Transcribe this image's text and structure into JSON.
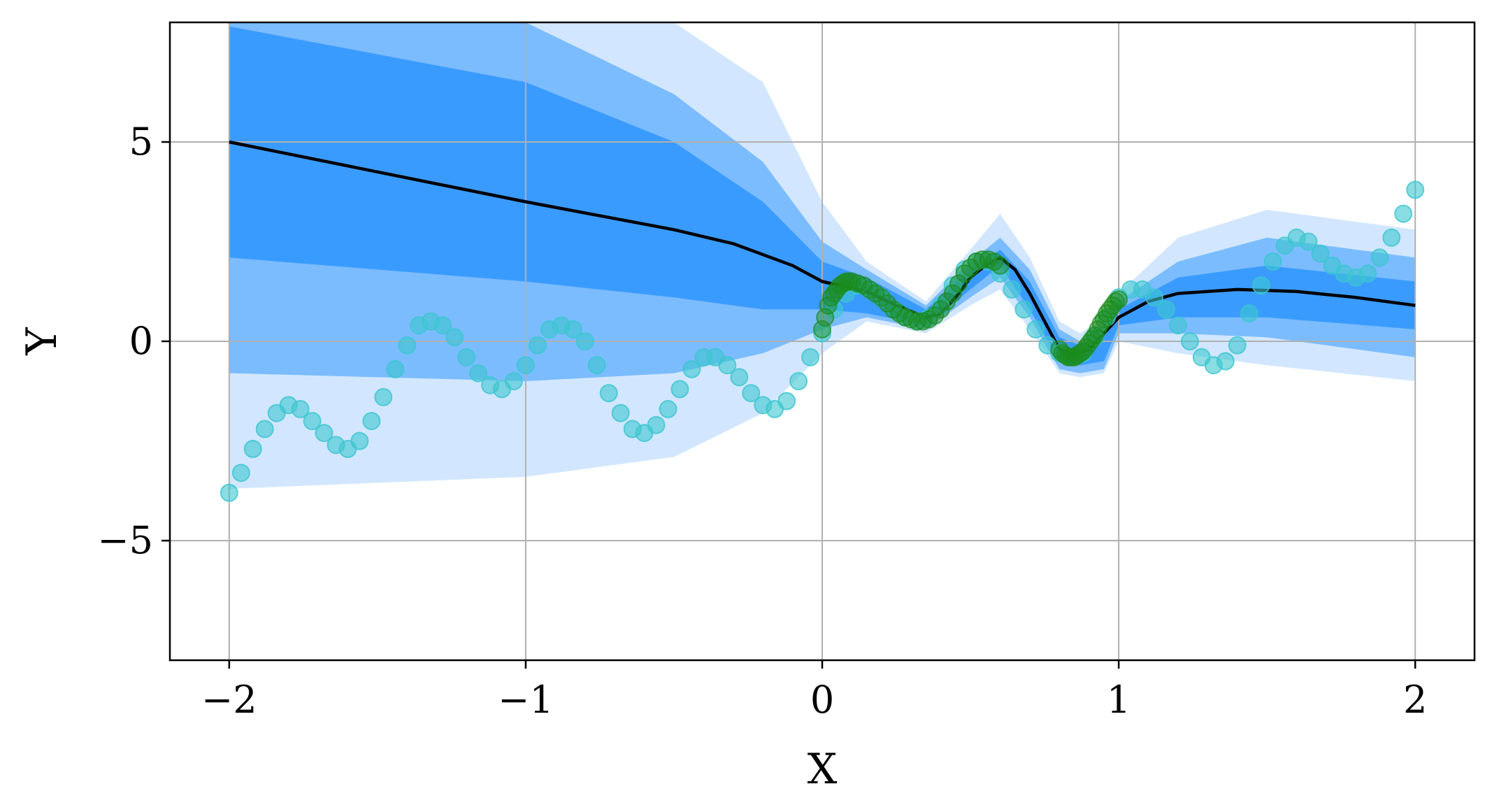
{
  "chart_data": {
    "type": "line",
    "title": "",
    "xlabel": "X",
    "ylabel": "Y",
    "xlim": [
      -2.2,
      2.2
    ],
    "ylim": [
      -8,
      8
    ],
    "xticks": [
      -2,
      -1,
      0,
      1,
      2
    ],
    "xtick_labels": [
      "−2",
      "−1",
      "0",
      "1",
      "2"
    ],
    "yticks": [
      -5,
      0,
      5
    ],
    "ytick_labels": [
      "−5",
      "0",
      "5"
    ],
    "grid": true,
    "colors": {
      "mean_line": "#000000",
      "band_inner": "#3a9bff",
      "band_middle": "#7bbcff",
      "band_outer": "#d2e7ff",
      "true_function_points": "#3cc6cf",
      "training_points": "#1a8c1a"
    },
    "mean": {
      "x": [
        -2.0,
        -1.5,
        -1.0,
        -0.5,
        -0.3,
        -0.1,
        0.0,
        0.15,
        0.25,
        0.35,
        0.4,
        0.45,
        0.5,
        0.55,
        0.6,
        0.65,
        0.7,
        0.75,
        0.8,
        0.85,
        0.9,
        1.0,
        1.1,
        1.2,
        1.4,
        1.6,
        1.8,
        2.0
      ],
      "y": [
        5.0,
        4.25,
        3.5,
        2.8,
        2.45,
        1.9,
        1.5,
        1.25,
        0.9,
        0.6,
        0.7,
        1.1,
        1.6,
        1.9,
        2.1,
        1.8,
        1.2,
        0.5,
        -0.2,
        -0.35,
        -0.2,
        0.6,
        1.0,
        1.2,
        1.3,
        1.25,
        1.1,
        0.9
      ]
    },
    "bands": [
      {
        "level": "inner",
        "x": [
          -2.0,
          -1.0,
          -0.5,
          -0.2,
          0.0,
          0.15,
          0.35,
          0.5,
          0.6,
          0.7,
          0.8,
          0.87,
          0.95,
          1.0,
          1.2,
          1.5,
          2.0
        ],
        "upper": [
          7.9,
          6.5,
          5.0,
          3.5,
          2.0,
          1.6,
          0.8,
          1.8,
          2.3,
          1.5,
          0.1,
          -0.1,
          0.2,
          0.8,
          1.6,
          1.9,
          1.5
        ],
        "lower": [
          2.1,
          1.5,
          1.1,
          0.8,
          0.8,
          0.7,
          0.4,
          1.3,
          1.9,
          0.8,
          -0.5,
          -0.6,
          -0.5,
          0.4,
          0.6,
          0.6,
          0.3
        ]
      },
      {
        "level": "middle",
        "x": [
          -2.0,
          -1.0,
          -0.5,
          -0.2,
          0.0,
          0.15,
          0.35,
          0.5,
          0.6,
          0.7,
          0.8,
          0.87,
          0.95,
          1.0,
          1.2,
          1.5,
          2.0
        ],
        "upper": [
          8.0,
          8.0,
          6.2,
          4.5,
          2.5,
          1.8,
          0.9,
          2.0,
          2.6,
          1.8,
          0.3,
          0.0,
          0.4,
          1.0,
          2.0,
          2.6,
          2.1
        ],
        "lower": [
          -0.8,
          -1.0,
          -0.8,
          -0.3,
          0.3,
          0.6,
          0.3,
          1.1,
          1.6,
          0.6,
          -0.7,
          -0.8,
          -0.7,
          0.2,
          0.2,
          0.1,
          -0.4
        ]
      },
      {
        "level": "outer",
        "x": [
          -2.0,
          -1.0,
          -0.5,
          -0.2,
          0.0,
          0.15,
          0.35,
          0.5,
          0.6,
          0.7,
          0.8,
          0.87,
          0.95,
          1.0,
          1.2,
          1.5,
          2.0
        ],
        "upper": [
          8.0,
          8.0,
          8.0,
          6.5,
          3.5,
          2.0,
          1.0,
          2.3,
          3.2,
          2.1,
          0.5,
          0.2,
          0.6,
          1.2,
          2.6,
          3.3,
          2.8
        ],
        "lower": [
          -3.7,
          -3.4,
          -2.9,
          -1.8,
          -0.3,
          0.5,
          0.2,
          0.9,
          1.3,
          0.3,
          -0.8,
          -0.9,
          -0.8,
          0.0,
          -0.3,
          -0.6,
          -1.0
        ]
      }
    ],
    "true_function_points": {
      "x": [
        -2.0,
        -1.96,
        -1.92,
        -1.88,
        -1.84,
        -1.8,
        -1.76,
        -1.72,
        -1.68,
        -1.64,
        -1.6,
        -1.56,
        -1.52,
        -1.48,
        -1.44,
        -1.4,
        -1.36,
        -1.32,
        -1.28,
        -1.24,
        -1.2,
        -1.16,
        -1.12,
        -1.08,
        -1.04,
        -1.0,
        -0.96,
        -0.92,
        -0.88,
        -0.84,
        -0.8,
        -0.76,
        -0.72,
        -0.68,
        -0.64,
        -0.6,
        -0.56,
        -0.52,
        -0.48,
        -0.44,
        -0.4,
        -0.36,
        -0.32,
        -0.28,
        -0.24,
        -0.2,
        -0.16,
        -0.12,
        -0.08,
        -0.04,
        0.0,
        0.04,
        0.08,
        0.12,
        0.16,
        0.2,
        0.24,
        0.28,
        0.32,
        0.36,
        0.4,
        0.44,
        0.48,
        0.52,
        0.56,
        0.6,
        0.64,
        0.68,
        0.72,
        0.76,
        0.8,
        0.84,
        0.88,
        0.92,
        0.96,
        1.0,
        1.04,
        1.08,
        1.12,
        1.16,
        1.2,
        1.24,
        1.28,
        1.32,
        1.36,
        1.4,
        1.44,
        1.48,
        1.52,
        1.56,
        1.6,
        1.64,
        1.68,
        1.72,
        1.76,
        1.8,
        1.84,
        1.88,
        1.92,
        1.96,
        2.0
      ],
      "y": [
        -3.8,
        -3.3,
        -2.7,
        -2.2,
        -1.8,
        -1.6,
        -1.7,
        -2.0,
        -2.3,
        -2.6,
        -2.7,
        -2.5,
        -2.0,
        -1.4,
        -0.7,
        -0.1,
        0.4,
        0.5,
        0.4,
        0.1,
        -0.4,
        -0.8,
        -1.1,
        -1.2,
        -1.0,
        -0.6,
        -0.1,
        0.3,
        0.4,
        0.3,
        0.0,
        -0.6,
        -1.3,
        -1.8,
        -2.2,
        -2.3,
        -2.1,
        -1.7,
        -1.2,
        -0.7,
        -0.4,
        -0.4,
        -0.6,
        -0.9,
        -1.3,
        -1.6,
        -1.7,
        -1.5,
        -1.0,
        -0.4,
        0.2,
        0.8,
        1.2,
        1.4,
        1.3,
        1.1,
        0.8,
        0.6,
        0.5,
        0.6,
        0.9,
        1.4,
        1.8,
        2.0,
        2.0,
        1.7,
        1.3,
        0.8,
        0.3,
        -0.1,
        -0.3,
        -0.4,
        -0.3,
        0.1,
        0.6,
        1.1,
        1.3,
        1.3,
        1.1,
        0.8,
        0.4,
        0.0,
        -0.4,
        -0.6,
        -0.5,
        -0.1,
        0.7,
        1.4,
        2.0,
        2.4,
        2.6,
        2.5,
        2.2,
        1.9,
        1.7,
        1.6,
        1.7,
        2.1,
        2.6,
        3.2,
        3.8
      ]
    },
    "training_points": {
      "x": [
        0.0,
        0.01,
        0.02,
        0.03,
        0.04,
        0.05,
        0.06,
        0.07,
        0.08,
        0.09,
        0.1,
        0.12,
        0.14,
        0.16,
        0.18,
        0.2,
        0.22,
        0.24,
        0.26,
        0.28,
        0.3,
        0.32,
        0.34,
        0.36,
        0.38,
        0.4,
        0.42,
        0.44,
        0.46,
        0.48,
        0.5,
        0.52,
        0.54,
        0.56,
        0.58,
        0.6,
        0.8,
        0.81,
        0.82,
        0.83,
        0.84,
        0.85,
        0.86,
        0.87,
        0.88,
        0.89,
        0.9,
        0.91,
        0.92,
        0.93,
        0.94,
        0.95,
        0.96,
        0.97,
        0.98,
        0.99,
        1.0
      ],
      "y": [
        0.3,
        0.6,
        0.9,
        1.1,
        1.2,
        1.3,
        1.4,
        1.45,
        1.5,
        1.5,
        1.5,
        1.45,
        1.4,
        1.3,
        1.2,
        1.1,
        0.95,
        0.8,
        0.7,
        0.6,
        0.55,
        0.5,
        0.5,
        0.55,
        0.65,
        0.8,
        1.0,
        1.2,
        1.45,
        1.7,
        1.85,
        2.0,
        2.05,
        2.05,
        2.0,
        1.9,
        -0.2,
        -0.3,
        -0.35,
        -0.4,
        -0.4,
        -0.4,
        -0.35,
        -0.3,
        -0.25,
        -0.15,
        -0.05,
        0.05,
        0.15,
        0.3,
        0.45,
        0.55,
        0.7,
        0.8,
        0.9,
        1.0,
        1.05
      ]
    }
  }
}
